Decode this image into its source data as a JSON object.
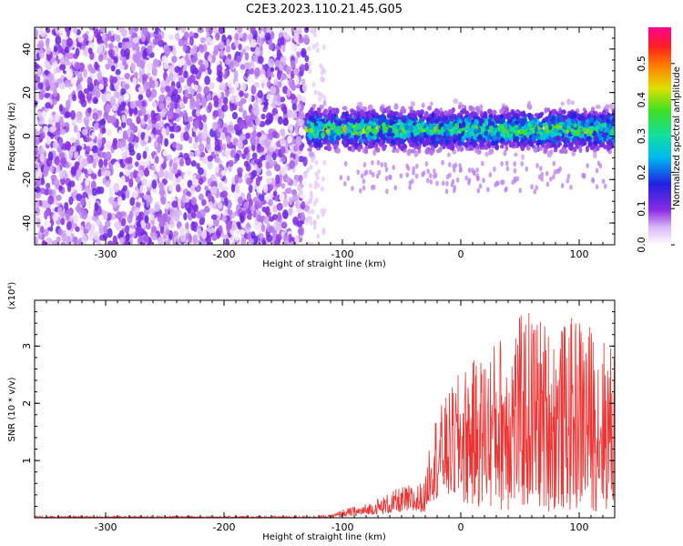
{
  "title": "C2E3.2023.110.21.45.G05",
  "chart_data": [
    {
      "type": "heatmap",
      "xlabel": "Height of straight line (km)",
      "ylabel": "Frequency (Hz)",
      "xlim": [
        -360,
        130
      ],
      "ylim": [
        -50,
        50
      ],
      "x_ticks": [
        -300,
        -200,
        -100,
        0,
        100
      ],
      "y_ticks": [
        -40,
        -20,
        0,
        20,
        40
      ],
      "colorbar": {
        "label": "Normalized spectral amplitude",
        "range": [
          0,
          0.6
        ],
        "ticks": [
          0.0,
          0.1,
          0.2,
          0.3,
          0.4,
          0.5
        ]
      },
      "regions": [
        {
          "x": [
            -360,
            -130
          ],
          "freq": [
            -50,
            50
          ],
          "amplitude": [
            0.0,
            0.08
          ]
        },
        {
          "x": [
            -130,
            130
          ],
          "freq": [
            -12,
            15
          ],
          "center_freq": 3,
          "amplitude": [
            0.05,
            0.45
          ]
        }
      ],
      "grid": false
    },
    {
      "type": "line",
      "xlabel": "Height of straight line (km)",
      "ylabel": "SNR (10 * v/v)",
      "multiplier": "(x10⁴)",
      "xlim": [
        -360,
        130
      ],
      "ylim": [
        0,
        3.8
      ],
      "x_ticks": [
        -300,
        -200,
        -100,
        0,
        100
      ],
      "y_ticks": [
        1,
        2,
        3
      ],
      "color": "#ee3333",
      "envelope": {
        "x": [
          -360,
          -200,
          -130,
          -110,
          -100,
          -80,
          -50,
          -30,
          -25,
          -10,
          0,
          20,
          40,
          60,
          80,
          100,
          130
        ],
        "y_min": [
          0,
          0,
          0,
          0,
          0.02,
          0.05,
          0.1,
          0.1,
          0.3,
          0.3,
          0.2,
          0.15,
          0.1,
          0.1,
          0.1,
          0.1,
          0.1
        ],
        "y_max": [
          0.03,
          0.03,
          0.03,
          0.05,
          0.15,
          0.25,
          0.55,
          0.65,
          1.7,
          2.2,
          2.6,
          2.9,
          3.4,
          3.7,
          3.3,
          3.6,
          3.0
        ]
      },
      "grid": false
    }
  ]
}
